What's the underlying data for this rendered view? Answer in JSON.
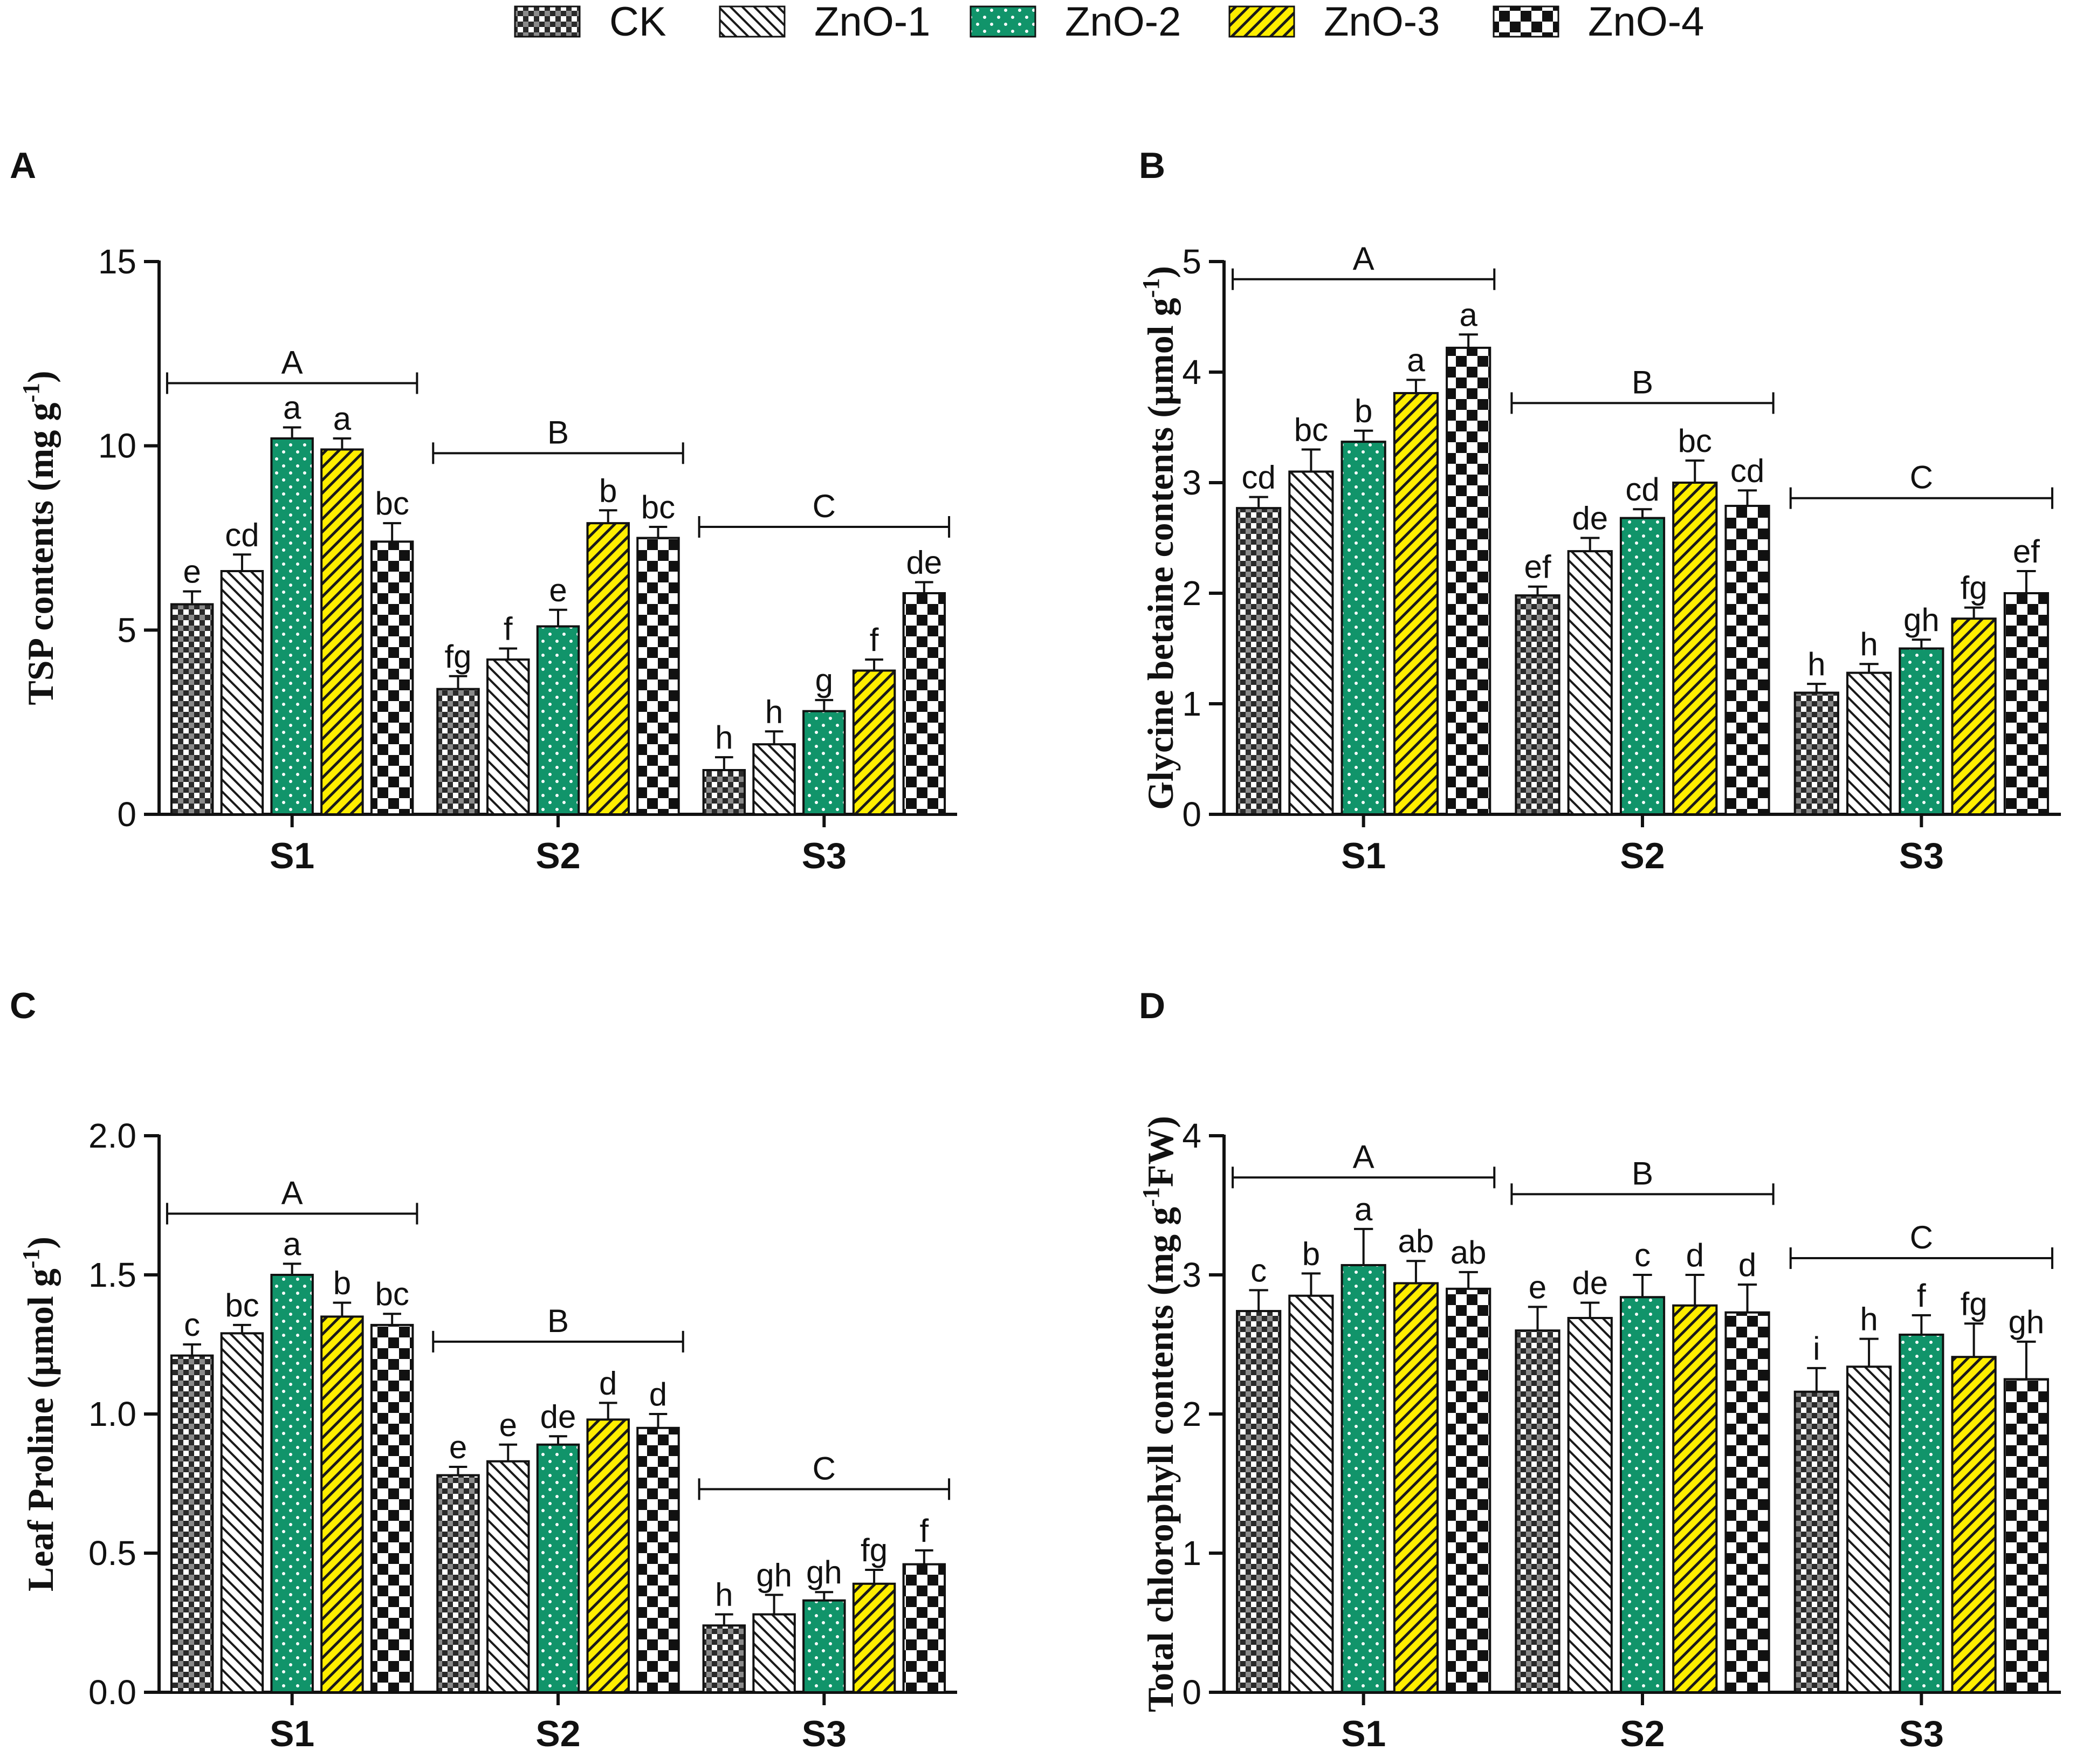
{
  "legend": [
    {
      "name": "CK",
      "pattern": "pat-ck",
      "color": "#ffffff"
    },
    {
      "name": "ZnO-1",
      "pattern": "pat-zno1",
      "color": "#ffffff"
    },
    {
      "name": "ZnO-2",
      "pattern": "pat-zno2",
      "color": "#11946a"
    },
    {
      "name": "ZnO-3",
      "pattern": "pat-zno3",
      "color": "#ffee00"
    },
    {
      "name": "ZnO-4",
      "pattern": "pat-zno4",
      "color": "#ffffff"
    }
  ],
  "chart_data": [
    {
      "panel": "A",
      "type": "bar",
      "ylabel_parts": [
        "TSP contents (mg g",
        "-1",
        ")"
      ],
      "ylim": [
        0,
        15
      ],
      "yticks": [
        0,
        5,
        10,
        15
      ],
      "ytick_labels": [
        "0",
        "5",
        "10",
        "15"
      ],
      "categories": [
        "S1",
        "S2",
        "S3"
      ],
      "series": [
        {
          "name": "CK",
          "values": [
            5.7,
            3.4,
            1.2
          ],
          "errors": [
            0.35,
            0.35,
            0.35
          ],
          "letters": [
            "e",
            "fg",
            "h"
          ]
        },
        {
          "name": "ZnO-1",
          "values": [
            6.6,
            4.2,
            1.9
          ],
          "errors": [
            0.45,
            0.3,
            0.35
          ],
          "letters": [
            "cd",
            "f",
            "h"
          ]
        },
        {
          "name": "ZnO-2",
          "values": [
            10.2,
            5.1,
            2.8
          ],
          "errors": [
            0.3,
            0.45,
            0.3
          ],
          "letters": [
            "a",
            "e",
            "g"
          ]
        },
        {
          "name": "ZnO-3",
          "values": [
            9.9,
            7.9,
            3.9
          ],
          "errors": [
            0.3,
            0.35,
            0.3
          ],
          "letters": [
            "a",
            "b",
            "f"
          ]
        },
        {
          "name": "ZnO-4",
          "values": [
            7.4,
            7.5,
            6.0
          ],
          "errors": [
            0.5,
            0.3,
            0.3
          ],
          "letters": [
            "bc",
            "bc",
            "de"
          ]
        }
      ],
      "groups": [
        {
          "label": "A",
          "y": 11.7
        },
        {
          "label": "B",
          "y": 9.8
        },
        {
          "label": "C",
          "y": 7.8
        }
      ]
    },
    {
      "panel": "B",
      "type": "bar",
      "ylabel_parts": [
        "Glycine betaine contents (µmol g",
        "-1",
        ")"
      ],
      "ylim": [
        0,
        5
      ],
      "yticks": [
        0,
        1,
        2,
        3,
        4,
        5
      ],
      "ytick_labels": [
        "0",
        "1",
        "2",
        "3",
        "4",
        "5"
      ],
      "categories": [
        "S1",
        "S2",
        "S3"
      ],
      "series": [
        {
          "name": "CK",
          "values": [
            2.77,
            1.98,
            1.1
          ],
          "errors": [
            0.1,
            0.08,
            0.08
          ],
          "letters": [
            "cd",
            "ef",
            "h"
          ]
        },
        {
          "name": "ZnO-1",
          "values": [
            3.1,
            2.38,
            1.28
          ],
          "errors": [
            0.2,
            0.12,
            0.08
          ],
          "letters": [
            "bc",
            "de",
            "h"
          ]
        },
        {
          "name": "ZnO-2",
          "values": [
            3.37,
            2.68,
            1.5
          ],
          "errors": [
            0.1,
            0.08,
            0.08
          ],
          "letters": [
            "b",
            "cd",
            "gh"
          ]
        },
        {
          "name": "ZnO-3",
          "values": [
            3.81,
            3.0,
            1.77
          ],
          "errors": [
            0.12,
            0.2,
            0.1
          ],
          "letters": [
            "a",
            "bc",
            "fg"
          ]
        },
        {
          "name": "ZnO-4",
          "values": [
            4.22,
            2.79,
            2.0
          ],
          "errors": [
            0.12,
            0.14,
            0.2
          ],
          "letters": [
            "a",
            "cd",
            "ef"
          ]
        }
      ],
      "groups": [
        {
          "label": "A",
          "y": 4.84
        },
        {
          "label": "B",
          "y": 3.72
        },
        {
          "label": "C",
          "y": 2.86
        }
      ]
    },
    {
      "panel": "C",
      "type": "bar",
      "ylabel_parts": [
        "Leaf Proline (µmol g",
        "-1",
        ")"
      ],
      "ylim": [
        0,
        2
      ],
      "yticks": [
        0,
        0.5,
        1,
        1.5,
        2
      ],
      "ytick_labels": [
        "0.0",
        "0.5",
        "1.0",
        "1.5",
        "2.0"
      ],
      "categories": [
        "S1",
        "S2",
        "S3"
      ],
      "series": [
        {
          "name": "CK",
          "values": [
            1.21,
            0.78,
            0.24
          ],
          "errors": [
            0.04,
            0.03,
            0.04
          ],
          "letters": [
            "c",
            "e",
            "h"
          ]
        },
        {
          "name": "ZnO-1",
          "values": [
            1.29,
            0.83,
            0.28
          ],
          "errors": [
            0.03,
            0.06,
            0.07
          ],
          "letters": [
            "bc",
            "e",
            "gh"
          ]
        },
        {
          "name": "ZnO-2",
          "values": [
            1.5,
            0.89,
            0.33
          ],
          "errors": [
            0.04,
            0.03,
            0.03
          ],
          "letters": [
            "a",
            "de",
            "gh"
          ]
        },
        {
          "name": "ZnO-3",
          "values": [
            1.35,
            0.98,
            0.39
          ],
          "errors": [
            0.05,
            0.06,
            0.05
          ],
          "letters": [
            "b",
            "d",
            "fg"
          ]
        },
        {
          "name": "ZnO-4",
          "values": [
            1.32,
            0.95,
            0.46
          ],
          "errors": [
            0.04,
            0.05,
            0.05
          ],
          "letters": [
            "bc",
            "d",
            "f"
          ]
        }
      ],
      "groups": [
        {
          "label": "A",
          "y": 1.72
        },
        {
          "label": "B",
          "y": 1.26
        },
        {
          "label": "C",
          "y": 0.73
        }
      ]
    },
    {
      "panel": "D",
      "type": "bar",
      "ylabel_parts": [
        "Total chlorophyll contents (mg g",
        "-1",
        "FW)"
      ],
      "ylim": [
        0,
        4
      ],
      "yticks": [
        0,
        1,
        2,
        3,
        4
      ],
      "ytick_labels": [
        "0",
        "1",
        "2",
        "3",
        "4"
      ],
      "categories": [
        "S1",
        "S2",
        "S3"
      ],
      "series": [
        {
          "name": "CK",
          "values": [
            2.74,
            2.6,
            2.16
          ],
          "errors": [
            0.15,
            0.17,
            0.17
          ],
          "letters": [
            "c",
            "e",
            "i"
          ]
        },
        {
          "name": "ZnO-1",
          "values": [
            2.85,
            2.69,
            2.34
          ],
          "errors": [
            0.16,
            0.11,
            0.2
          ],
          "letters": [
            "b",
            "de",
            "h"
          ]
        },
        {
          "name": "ZnO-2",
          "values": [
            3.07,
            2.84,
            2.57
          ],
          "errors": [
            0.26,
            0.16,
            0.14
          ],
          "letters": [
            "a",
            "c",
            "f"
          ]
        },
        {
          "name": "ZnO-3",
          "values": [
            2.94,
            2.78,
            2.41
          ],
          "errors": [
            0.16,
            0.22,
            0.24
          ],
          "letters": [
            "ab",
            "d",
            "fg"
          ]
        },
        {
          "name": "ZnO-4",
          "values": [
            2.9,
            2.73,
            2.25
          ],
          "errors": [
            0.12,
            0.2,
            0.27
          ],
          "letters": [
            "ab",
            "d",
            "gh"
          ]
        }
      ],
      "groups": [
        {
          "label": "A",
          "y": 3.7
        },
        {
          "label": "B",
          "y": 3.58
        },
        {
          "label": "C",
          "y": 3.12
        }
      ]
    }
  ]
}
